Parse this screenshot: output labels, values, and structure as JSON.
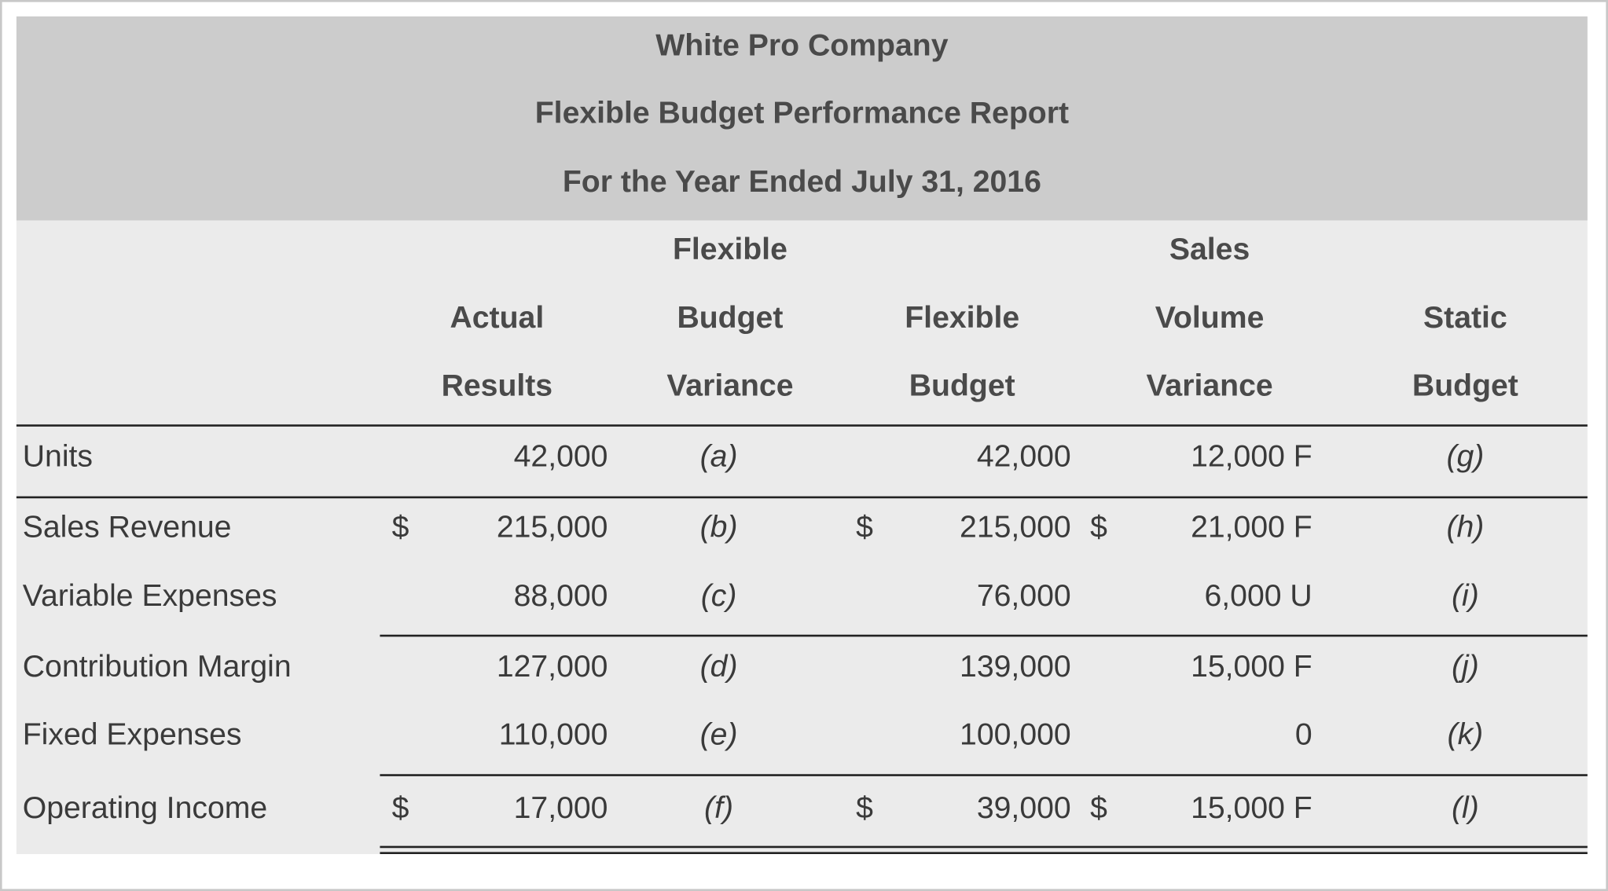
{
  "header": {
    "company": "White Pro Company",
    "report": "Flexible Budget Performance Report",
    "period": "For the Year Ended July 31, 2016"
  },
  "table": {
    "columns": [
      [
        "Actual",
        "Results"
      ],
      [
        "Flexible",
        "Budget",
        "Variance"
      ],
      [
        "Flexible",
        "Budget"
      ],
      [
        "Sales",
        "Volume",
        "Variance"
      ],
      [
        "Static",
        "Budget"
      ]
    ],
    "rows": [
      {
        "label": "Units",
        "actual": "42,000",
        "flexible_budget_variance": "(a)",
        "flexible_budget": "42,000",
        "sales_volume_variance": "12,000 F",
        "static_budget": "(g)"
      },
      {
        "label": "Sales Revenue",
        "actual_currency": "$",
        "actual": "215,000",
        "flexible_budget_variance": "(b)",
        "flexible_currency": "$",
        "flexible_budget": "215,000",
        "sales_volume_currency": "$",
        "sales_volume_variance": "21,000 F",
        "static_budget": "(h)"
      },
      {
        "label": "Variable Expenses",
        "actual": "88,000",
        "flexible_budget_variance": "(c)",
        "flexible_budget": "76,000",
        "sales_volume_variance": "6,000 U",
        "static_budget": "(i)"
      },
      {
        "label": "Contribution Margin",
        "actual": "127,000",
        "flexible_budget_variance": "(d)",
        "flexible_budget": "139,000",
        "sales_volume_variance": "15,000 F",
        "static_budget": "(j)"
      },
      {
        "label": "Fixed Expenses",
        "actual": "110,000",
        "flexible_budget_variance": "(e)",
        "flexible_budget": "100,000",
        "sales_volume_variance": "0",
        "static_budget": "(k)"
      },
      {
        "label": "Operating Income",
        "actual_currency": "$",
        "actual": "17,000",
        "flexible_budget_variance": "(f)",
        "flexible_currency": "$",
        "flexible_budget": "39,000",
        "sales_volume_currency": "$",
        "sales_volume_variance": "15,000 F",
        "static_budget": "(l)"
      }
    ]
  }
}
